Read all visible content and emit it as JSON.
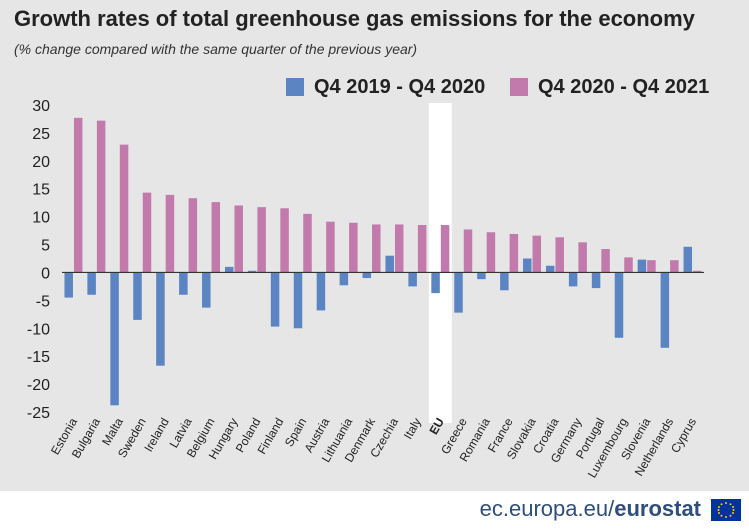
{
  "title": "Growth rates of total greenhouse gas emissions for the economy",
  "subtitle": "(% change compared with the same quarter of the previous year)",
  "footer": {
    "domain": "ec.europa.eu/",
    "brand": "eurostat"
  },
  "colors": {
    "series1": "#5b85c2",
    "series2": "#c27aac",
    "highlight": "#ffffff",
    "background": "#e6e6e6",
    "footer_text": "#2f4f7a"
  },
  "chart_data": {
    "type": "bar",
    "title": "Growth rates of total greenhouse gas emissions for the economy",
    "subtitle": "(% change compared with the same quarter of the previous year)",
    "xlabel": "",
    "ylabel": "",
    "ylim": [
      -25,
      30
    ],
    "yticks": [
      30,
      25,
      20,
      15,
      10,
      5,
      0,
      -5,
      -10,
      -15,
      -20,
      -25
    ],
    "grid": false,
    "legend_position": "top-right",
    "highlighted_category": "EU",
    "categories": [
      "Estonia",
      "Bulgaria",
      "Malta",
      "Sweden",
      "Ireland",
      "Latvia",
      "Belgium",
      "Hungary",
      "Poland",
      "Finland",
      "Spain",
      "Austria",
      "Lithuania",
      "Denmark",
      "Czechia",
      "Italy",
      "EU",
      "Greece",
      "Romania",
      "France",
      "Slovakia",
      "Croatia",
      "Germany",
      "Portugal",
      "Luxembourg",
      "Slovenia",
      "Netherlands",
      "Cyprus"
    ],
    "series": [
      {
        "name": "Q4 2019 - Q4 2020",
        "color": "#5b85c2",
        "values": [
          -4.5,
          -4.0,
          -23.8,
          -8.5,
          -16.7,
          -4.0,
          -6.3,
          1.0,
          0.3,
          -9.7,
          -10.0,
          -6.8,
          -2.3,
          -1.0,
          3.0,
          -2.5,
          -3.7,
          -7.2,
          -1.2,
          -3.2,
          2.5,
          1.2,
          -2.5,
          -2.8,
          -11.7,
          2.3,
          -13.5,
          4.6
        ]
      },
      {
        "name": "Q4 2020 - Q4 2021",
        "color": "#c27aac",
        "values": [
          27.7,
          27.2,
          22.9,
          14.3,
          13.9,
          13.3,
          12.6,
          12.0,
          11.7,
          11.5,
          10.5,
          9.1,
          8.9,
          8.6,
          8.6,
          8.5,
          8.5,
          7.7,
          7.2,
          6.9,
          6.6,
          6.3,
          5.4,
          4.2,
          2.7,
          2.2,
          2.2,
          0.3
        ]
      }
    ]
  }
}
